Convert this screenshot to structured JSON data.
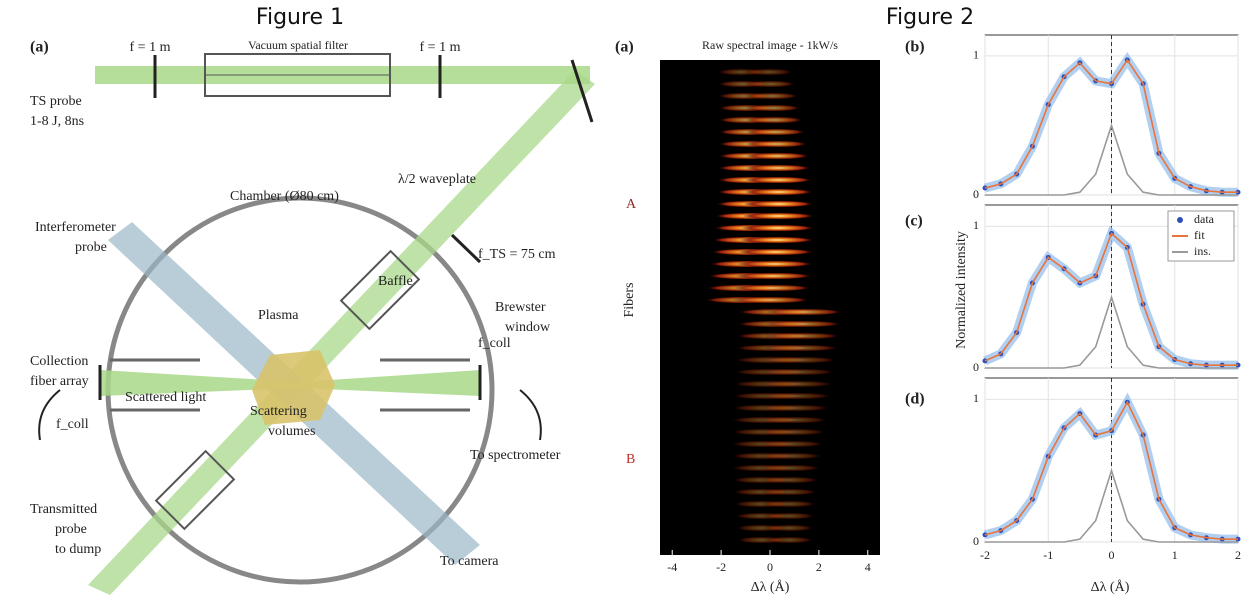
{
  "figure_1": {
    "title": "Figure 1",
    "panel_label": "(a)",
    "labels": {
      "lens_left": "f = 1 m",
      "spatial_filter": "Vacuum spatial filter",
      "lens_right": "f = 1 m",
      "probe_1": "TS probe",
      "probe_2": "1-8 J, 8ns",
      "waveplate": "λ/2 waveplate",
      "chamber": "Chamber (Ø80 cm)",
      "interferometer_1": "Interferometer",
      "interferometer_2": "probe",
      "focus_lens": "f_TS = 75 cm",
      "baffle": "Baffle",
      "brewster_1": "Brewster",
      "brewster_2": "window",
      "plasma": "Plasma",
      "collection_1": "Collection",
      "collection_2": "fiber array",
      "f_coll_right": "f_coll",
      "scattered": "Scattered light",
      "volumes_1": "Scattering",
      "volumes_2": "volumes",
      "f_coll_left": "f_coll",
      "spectrometer": "To spectrometer",
      "transmitted_1": "Transmitted",
      "transmitted_2": "probe",
      "transmitted_3": "to dump",
      "camera": "To camera"
    }
  },
  "figure_2": {
    "title": "Figure 2",
    "panel_a": {
      "label": "(a)",
      "title": "Raw spectral image - 1kW/s",
      "y_label": "Fibers",
      "group_a": "A",
      "group_b": "B",
      "x_label": "Δλ (Å)",
      "xlim": [
        -4.5,
        4.5
      ],
      "xticks": [
        -4,
        -2,
        0,
        2,
        4
      ]
    },
    "spectra": {
      "type": "line",
      "x_label": "Δλ (Å)",
      "y_label": "Normalized intensity",
      "x": [
        -2,
        -1.75,
        -1.5,
        -1.25,
        -1,
        -0.75,
        -0.5,
        -0.25,
        0,
        0.25,
        0.5,
        0.75,
        1,
        1.25,
        1.5,
        1.75,
        2
      ],
      "xlim": [
        -2,
        2
      ],
      "ylim": [
        0,
        1.15
      ],
      "xticks": [
        -2,
        -1,
        0,
        1,
        2
      ],
      "yticks": [
        0,
        1
      ],
      "grid": true,
      "panels": [
        {
          "label": "(b)",
          "series": [
            {
              "name": "data",
              "color": "#2f4fb8",
              "values": [
                0.05,
                0.08,
                0.15,
                0.35,
                0.65,
                0.85,
                0.95,
                0.82,
                0.8,
                0.97,
                0.8,
                0.3,
                0.12,
                0.06,
                0.03,
                0.02,
                0.02
              ]
            },
            {
              "name": "fit",
              "color": "#e8743b",
              "values": [
                0.05,
                0.08,
                0.15,
                0.35,
                0.65,
                0.85,
                0.95,
                0.82,
                0.8,
                0.97,
                0.8,
                0.3,
                0.12,
                0.06,
                0.03,
                0.02,
                0.02
              ]
            },
            {
              "name": "ins.",
              "color": "#999999",
              "values": [
                0,
                0,
                0,
                0,
                0,
                0,
                0.02,
                0.15,
                0.5,
                0.15,
                0.02,
                0,
                0,
                0,
                0,
                0,
                0
              ]
            }
          ]
        },
        {
          "label": "(c)",
          "legend": "upper right",
          "series": [
            {
              "name": "data",
              "color": "#2f4fb8",
              "values": [
                0.05,
                0.1,
                0.25,
                0.6,
                0.78,
                0.7,
                0.6,
                0.65,
                0.95,
                0.85,
                0.45,
                0.15,
                0.06,
                0.03,
                0.02,
                0.02,
                0.02
              ]
            },
            {
              "name": "fit",
              "color": "#e8743b",
              "values": [
                0.05,
                0.1,
                0.25,
                0.6,
                0.78,
                0.7,
                0.6,
                0.65,
                0.95,
                0.85,
                0.45,
                0.15,
                0.06,
                0.03,
                0.02,
                0.02,
                0.02
              ]
            },
            {
              "name": "ins.",
              "color": "#999999",
              "values": [
                0,
                0,
                0,
                0,
                0,
                0,
                0.02,
                0.15,
                0.5,
                0.15,
                0.02,
                0,
                0,
                0,
                0,
                0,
                0
              ]
            }
          ]
        },
        {
          "label": "(d)",
          "series": [
            {
              "name": "data",
              "color": "#2f4fb8",
              "values": [
                0.05,
                0.08,
                0.15,
                0.3,
                0.6,
                0.8,
                0.9,
                0.75,
                0.78,
                0.98,
                0.75,
                0.3,
                0.1,
                0.05,
                0.03,
                0.02,
                0.02
              ]
            },
            {
              "name": "fit",
              "color": "#e8743b",
              "values": [
                0.05,
                0.08,
                0.15,
                0.3,
                0.6,
                0.8,
                0.9,
                0.75,
                0.78,
                0.98,
                0.75,
                0.3,
                0.1,
                0.05,
                0.03,
                0.02,
                0.02
              ]
            },
            {
              "name": "ins.",
              "color": "#999999",
              "values": [
                0,
                0,
                0,
                0,
                0,
                0,
                0.02,
                0.15,
                0.5,
                0.15,
                0.02,
                0,
                0,
                0,
                0,
                0,
                0
              ]
            }
          ]
        }
      ]
    }
  }
}
